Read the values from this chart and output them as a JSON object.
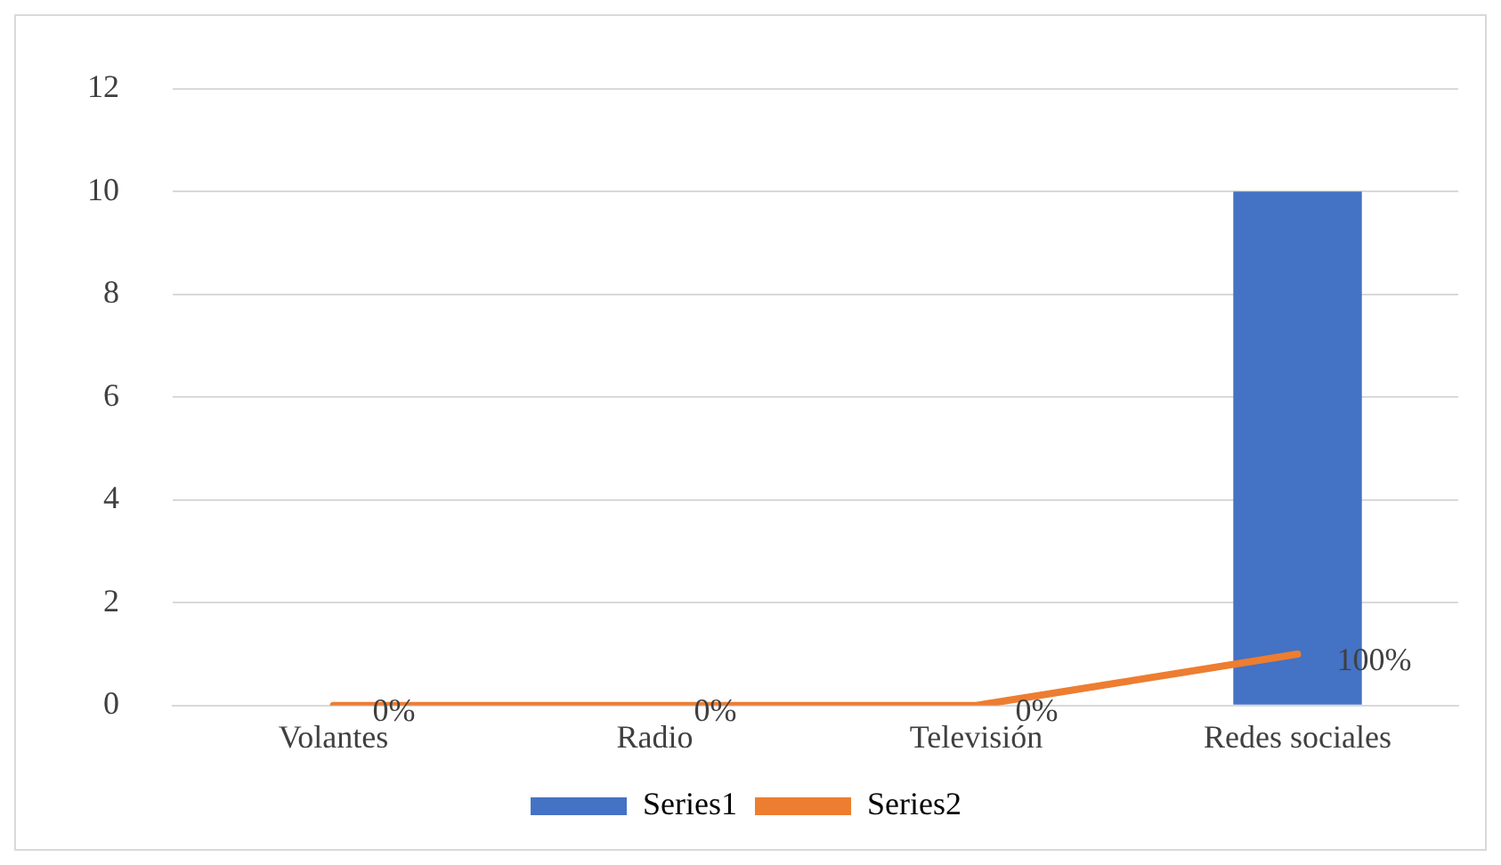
{
  "chart_data": {
    "type": "bar",
    "categories": [
      "Volantes",
      "Radio",
      "Televisión",
      "Redes sociales"
    ],
    "series": [
      {
        "name": "Series1",
        "color": "#4472c4",
        "values": [
          0,
          0,
          0,
          10
        ]
      },
      {
        "name": "Series2",
        "type": "line",
        "color": "#ed7d31",
        "values": [
          0,
          0,
          0,
          1
        ],
        "value_labels": [
          "0%",
          "0%",
          "0%",
          "100%"
        ]
      }
    ],
    "ylim": [
      0,
      12
    ],
    "yticks": [
      0,
      2,
      4,
      6,
      8,
      10,
      12
    ],
    "grid": "y",
    "legend": "bottom",
    "marker": "none"
  }
}
